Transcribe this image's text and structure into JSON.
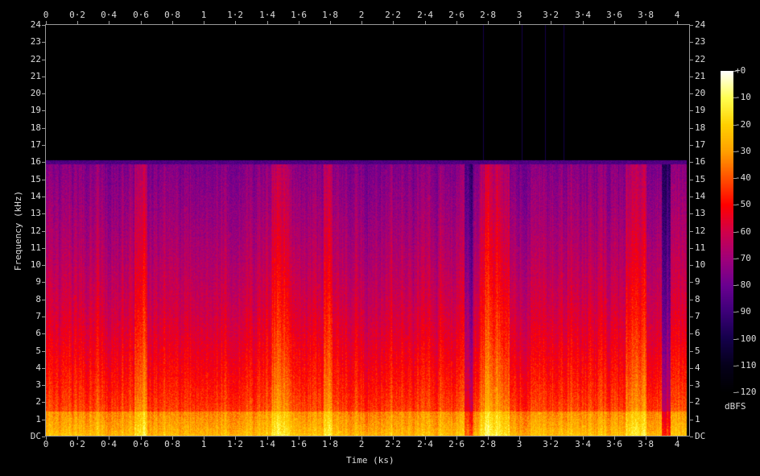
{
  "chart_data": {
    "type": "heatmap",
    "subtype": "spectrogram",
    "xlabel": "Time (ks)",
    "ylabel": "Frequency (kHz)",
    "xlim": [
      0,
      4.08
    ],
    "ylim": [
      0,
      24
    ],
    "x_ticks": [
      "0",
      "0·2",
      "0·4",
      "0·6",
      "0·8",
      "1",
      "1·2",
      "1·4",
      "1·6",
      "1·8",
      "2",
      "2·2",
      "2·4",
      "2·6",
      "2·8",
      "3",
      "3·2",
      "3·4",
      "3·6",
      "3·8",
      "4"
    ],
    "x_tick_values": [
      0,
      0.2,
      0.4,
      0.6,
      0.8,
      1,
      1.2,
      1.4,
      1.6,
      1.8,
      2,
      2.2,
      2.4,
      2.6,
      2.8,
      3,
      3.2,
      3.4,
      3.6,
      3.8,
      4
    ],
    "y_ticks": [
      "DC",
      "1",
      "2",
      "3",
      "4",
      "5",
      "6",
      "7",
      "8",
      "9",
      "10",
      "11",
      "12",
      "13",
      "14",
      "15",
      "16",
      "17",
      "18",
      "19",
      "20",
      "21",
      "22",
      "23",
      "24"
    ],
    "content_cutoff_khz": 16,
    "colorbar": {
      "label": "dBFS",
      "range": [
        -120,
        0
      ],
      "ticks": [
        "+0",
        "-10",
        "-20",
        "-30",
        "-40",
        "-50",
        "-60",
        "-70",
        "-80",
        "-90",
        "-100",
        "-110",
        "-120"
      ],
      "tick_values": [
        0,
        -10,
        -20,
        -30,
        -40,
        -50,
        -60,
        -70,
        -80,
        -90,
        -100,
        -110,
        -120
      ],
      "colormap": [
        [
          -120,
          "#000000"
        ],
        [
          -110,
          "#05001a"
        ],
        [
          -100,
          "#14004a"
        ],
        [
          -90,
          "#3c0078"
        ],
        [
          -80,
          "#6a0090"
        ],
        [
          -70,
          "#a0007a"
        ],
        [
          -60,
          "#d0004a"
        ],
        [
          -50,
          "#ff0000"
        ],
        [
          -40,
          "#ff5000"
        ],
        [
          -30,
          "#ffa000"
        ],
        [
          -20,
          "#ffd000"
        ],
        [
          -10,
          "#ffff50"
        ],
        [
          0,
          "#ffffff"
        ]
      ]
    }
  }
}
